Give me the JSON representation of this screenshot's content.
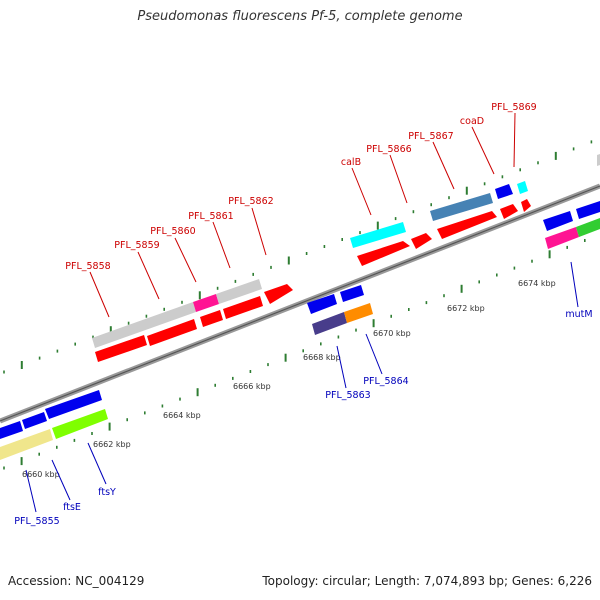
{
  "title": "Pseudomonas fluorescens Pf-5, complete genome",
  "footer": {
    "accession_prefix": "Accession:",
    "accession": "NC_004129",
    "topology_text": "Topology: circular; Length: 7,074,893 bp; Genes: 6,226"
  },
  "colors": {
    "axis": "#777777",
    "tick": "#2e7d32",
    "top_label": "#cc0000",
    "bottom_label": "#0000bb",
    "red": "#ff0000",
    "blue": "#0000ee",
    "cyan": "#00ffff",
    "gray": "#cccccc",
    "magenta": "#ff1493",
    "steelblue": "#4682b4",
    "navy": "#483d8b",
    "orange": "#ff8c00",
    "khaki": "#f0e68c",
    "lime": "#7fff00",
    "green": "#32cd32"
  },
  "kbp_labels": [
    "6660 kbp",
    "6662 kbp",
    "6664 kbp",
    "6666 kbp",
    "6668 kbp",
    "6670 kbp",
    "6672 kbp",
    "6674 kbp"
  ],
  "top_genes": [
    "PFL_5858",
    "PFL_5859",
    "PFL_5860",
    "PFL_5861",
    "PFL_5862",
    "calB",
    "PFL_5866",
    "PFL_5867",
    "coaD",
    "PFL_5869"
  ],
  "bottom_genes": [
    "PFL_5855",
    "ftsE",
    "ftsY",
    "PFL_5863",
    "PFL_5864",
    "mutM"
  ]
}
